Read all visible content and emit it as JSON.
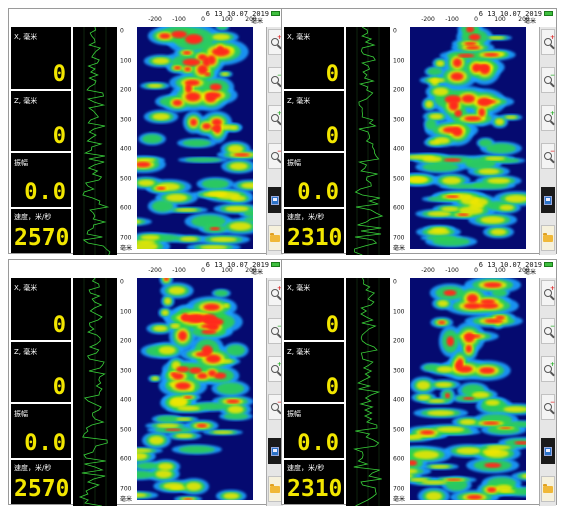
{
  "panels": [
    {
      "timestamp": "6 13 10.07 2019",
      "x_label": "X, 毫米",
      "x_value": "0",
      "z_label": "Z, 毫米",
      "z_value": "0",
      "amp_label": "振幅",
      "amp_value": "0.0",
      "speed_label": "速度，米/秒",
      "speed_value": "2570"
    },
    {
      "timestamp": "6 13 10.07 2019",
      "x_label": "X, 毫米",
      "x_value": "0",
      "z_label": "Z, 毫米",
      "z_value": "0",
      "amp_label": "振幅",
      "amp_value": "0.0",
      "speed_label": "速度，米/秒",
      "speed_value": "2310"
    },
    {
      "timestamp": "6 13 10.07 2019",
      "x_label": "X, 毫米",
      "x_value": "0",
      "z_label": "Z, 毫米",
      "z_value": "0",
      "amp_label": "振幅",
      "amp_value": "0.0",
      "speed_label": "速度，米/秒",
      "speed_value": "2570"
    },
    {
      "timestamp": "6 13 10.07 2019",
      "x_label": "X, 毫米",
      "x_value": "0",
      "z_label": "Z, 毫米",
      "z_value": "0",
      "amp_label": "振幅",
      "amp_value": "0.0",
      "speed_label": "速度，米/秒",
      "speed_value": "2310"
    }
  ],
  "axis": {
    "x_ticks": [
      "-200",
      "-100",
      "0",
      "100",
      "200"
    ],
    "y_ticks": [
      "0",
      "100",
      "200",
      "300",
      "400",
      "500",
      "600",
      "700"
    ],
    "unit": "毫米"
  },
  "toolbar_icons": [
    "zoom-in-icon",
    "zoom-out-icon",
    "zoom-add-icon",
    "zoom-reset-icon",
    "save-icon",
    "folder-icon"
  ],
  "colors": {
    "background": "#050a70",
    "hot": "#ff2a1a",
    "warm": "#f2e600",
    "mid": "#2fd24a",
    "cool": "#1ea0ff",
    "readout": "#f2e600",
    "trace": "#39d13a"
  }
}
